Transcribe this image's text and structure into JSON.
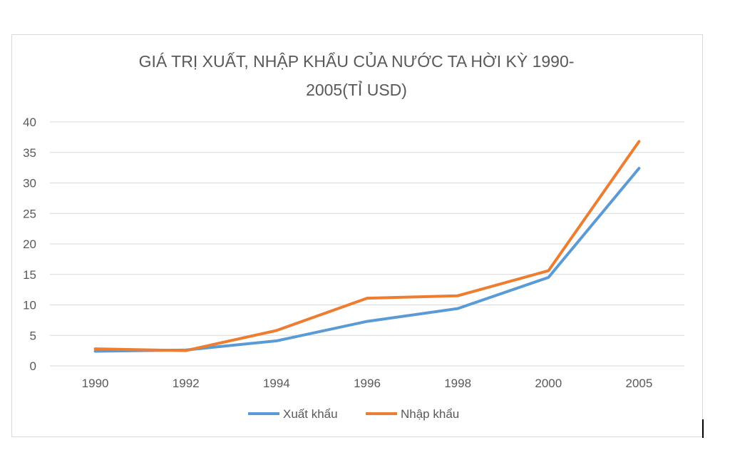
{
  "chart_data": {
    "type": "line",
    "title_line1": "GIÁ TRỊ XUẤT, NHẬP KHẨU CỦA NƯỚC TA HỜI KỲ 1990-",
    "title_line2": "2005(TỈ USD)",
    "categories": [
      "1990",
      "1992",
      "1994",
      "1996",
      "1998",
      "2000",
      "2005"
    ],
    "y_ticks": [
      "0",
      "5",
      "10",
      "15",
      "20",
      "25",
      "30",
      "35",
      "40"
    ],
    "ylim": [
      0,
      40
    ],
    "grid": true,
    "legend_position": "bottom",
    "series": [
      {
        "name": "Xuất khẩu",
        "color": "#5b9bd5",
        "values": [
          2.4,
          2.6,
          4.1,
          7.3,
          9.4,
          14.5,
          32.4
        ]
      },
      {
        "name": "Nhập khẩu",
        "color": "#ed7d31",
        "values": [
          2.8,
          2.5,
          5.8,
          11.1,
          11.5,
          15.6,
          36.8
        ]
      }
    ]
  }
}
